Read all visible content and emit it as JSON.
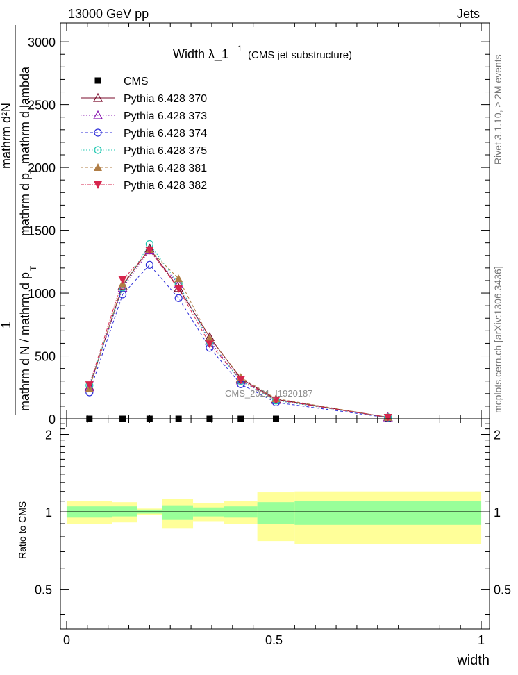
{
  "header": {
    "left": "13000 GeV pp",
    "right": "Jets"
  },
  "side_labels": {
    "rivet": "Rivet 3.1.10, ≥ 2M events",
    "mcplots": "mcplots.cern.ch [arXiv:1306.3436]"
  },
  "watermark": "CMS_2021_I1920187",
  "colors": {
    "band_inner": "#99ff99",
    "band_outer": "#ffff99"
  },
  "chart_data": [
    {
      "type": "line",
      "title": "Width λ_1",
      "title_sup": "1",
      "subtitle": "(CMS jet substructure)",
      "ylabel_parts": [
        "1",
        "mathrm d N / mathrm d p",
        "T",
        "mathrm d p",
        "T",
        "mathrm d lambda",
        "mathrm d²N"
      ],
      "xlim": [
        -0.015,
        1.02
      ],
      "ylim": [
        0,
        3150
      ],
      "yticks": [
        0,
        500,
        1000,
        1500,
        2000,
        2500,
        3000
      ],
      "ytick_labels": [
        "0",
        "500",
        "1000",
        "1500",
        "2000",
        "2500",
        "3000"
      ],
      "legend_position": "top-left",
      "x": [
        0.055,
        0.135,
        0.2,
        0.27,
        0.345,
        0.42,
        0.505,
        0.775
      ],
      "series": [
        {
          "name": "CMS",
          "marker": "square-filled",
          "color": "#000000",
          "line": "none",
          "values": [
            0,
            0,
            0,
            0,
            0,
            0,
            0,
            0
          ]
        },
        {
          "name": "Pythia 6.428 370",
          "marker": "triangle-open",
          "color": "#7a0b2b",
          "line": "solid",
          "values": [
            255,
            1060,
            1355,
            1040,
            650,
            320,
            155,
            12
          ]
        },
        {
          "name": "Pythia 6.428 373",
          "marker": "triangle-open",
          "color": "#8a1ab2",
          "line": "dotted",
          "values": [
            250,
            1040,
            1340,
            1070,
            620,
            305,
            150,
            11
          ]
        },
        {
          "name": "Pythia 6.428 374",
          "marker": "circle-open",
          "color": "#2b2bd8",
          "line": "dashed",
          "values": [
            210,
            990,
            1225,
            960,
            565,
            275,
            130,
            9
          ]
        },
        {
          "name": "Pythia 6.428 375",
          "marker": "circle-open",
          "color": "#1fc7b0",
          "line": "dotted",
          "values": [
            265,
            1045,
            1390,
            1075,
            610,
            300,
            145,
            11
          ]
        },
        {
          "name": "Pythia 6.428 381",
          "marker": "triangle-filled",
          "color": "#b07d45",
          "line": "dashed",
          "values": [
            240,
            1075,
            1345,
            1115,
            640,
            330,
            160,
            12
          ]
        },
        {
          "name": "Pythia 6.428 382",
          "marker": "triangle-down-filled",
          "color": "#d6264d",
          "line": "dashdot",
          "values": [
            270,
            1105,
            1340,
            1035,
            595,
            310,
            150,
            11
          ]
        }
      ]
    },
    {
      "type": "area",
      "ylabel": "Ratio to CMS",
      "xlabel": "width",
      "xlim": [
        -0.015,
        1.02
      ],
      "ylim": [
        0.35,
        2.3
      ],
      "yticks": [
        0.5,
        1,
        2
      ],
      "ytick_labels": [
        "0.5",
        "1",
        "2"
      ],
      "xticks": [
        0,
        0.5,
        1
      ],
      "xtick_labels": [
        "0",
        "0.5",
        "1"
      ],
      "bins": [
        {
          "lo": 0.0,
          "hi": 0.11,
          "inner": [
            0.95,
            1.05
          ],
          "outer": [
            0.9,
            1.1
          ]
        },
        {
          "lo": 0.11,
          "hi": 0.17,
          "inner": [
            0.96,
            1.05
          ],
          "outer": [
            0.91,
            1.09
          ]
        },
        {
          "lo": 0.17,
          "hi": 0.23,
          "inner": [
            0.985,
            1.02
          ],
          "outer": [
            0.97,
            1.03
          ]
        },
        {
          "lo": 0.23,
          "hi": 0.305,
          "inner": [
            0.93,
            1.06
          ],
          "outer": [
            0.86,
            1.12
          ]
        },
        {
          "lo": 0.305,
          "hi": 0.38,
          "inner": [
            0.96,
            1.04
          ],
          "outer": [
            0.92,
            1.08
          ]
        },
        {
          "lo": 0.38,
          "hi": 0.46,
          "inner": [
            0.95,
            1.05
          ],
          "outer": [
            0.9,
            1.1
          ]
        },
        {
          "lo": 0.46,
          "hi": 0.55,
          "inner": [
            0.9,
            1.09
          ],
          "outer": [
            0.77,
            1.19
          ]
        },
        {
          "lo": 0.55,
          "hi": 1.0,
          "inner": [
            0.89,
            1.1
          ],
          "outer": [
            0.75,
            1.2
          ]
        }
      ]
    }
  ]
}
